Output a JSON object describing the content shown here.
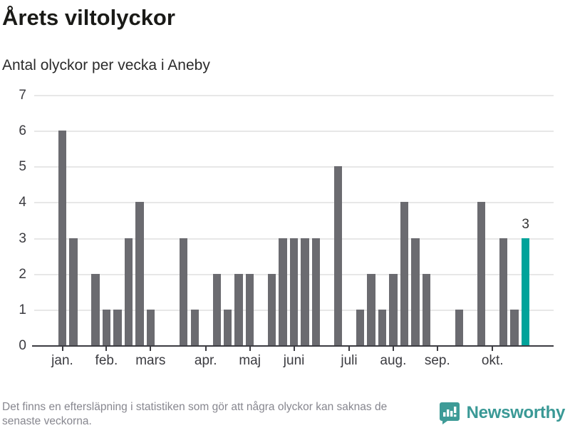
{
  "header": {
    "title": "Årets viltolyckor",
    "subtitle": "Antal olyckor per vecka i Aneby"
  },
  "chart_data": {
    "type": "bar",
    "title": "Årets viltolyckor",
    "subtitle": "Antal olyckor per vecka i Aneby",
    "xlabel": "",
    "ylabel": "",
    "ylim": [
      0,
      7
    ],
    "yticks": [
      0,
      1,
      2,
      3,
      4,
      5,
      6,
      7
    ],
    "grid": true,
    "categories_unit": "vecka",
    "values": [
      6,
      3,
      0,
      2,
      1,
      1,
      3,
      4,
      1,
      0,
      0,
      3,
      1,
      0,
      2,
      1,
      2,
      2,
      0,
      2,
      3,
      3,
      3,
      3,
      0,
      5,
      0,
      1,
      2,
      1,
      2,
      4,
      3,
      2,
      0,
      0,
      1,
      0,
      4,
      0,
      3,
      1,
      3
    ],
    "month_ticks": [
      {
        "label": "jan.",
        "week": 1
      },
      {
        "label": "feb.",
        "week": 5
      },
      {
        "label": "mars",
        "week": 9
      },
      {
        "label": "apr.",
        "week": 14
      },
      {
        "label": "maj",
        "week": 18
      },
      {
        "label": "juni",
        "week": 22
      },
      {
        "label": "juli",
        "week": 27
      },
      {
        "label": "aug.",
        "week": 31
      },
      {
        "label": "sep.",
        "week": 35
      },
      {
        "label": "okt.",
        "week": 40
      }
    ],
    "highlight_last_bar": true,
    "last_bar_label": "3",
    "colors": {
      "bar": "#6b6b70",
      "highlight": "#00a39a",
      "grid": "#e7e7e7",
      "axis": "#3c3c42",
      "tick_text": "#3b3b40"
    },
    "legend": null
  },
  "footer": {
    "note_line1": "Det finns en eftersläpning i statistiken som gör att några olyckor kan saknas de",
    "note_line2": "senaste veckorna.",
    "brand": "Newsworthy",
    "brand_color": "#3a9996"
  }
}
